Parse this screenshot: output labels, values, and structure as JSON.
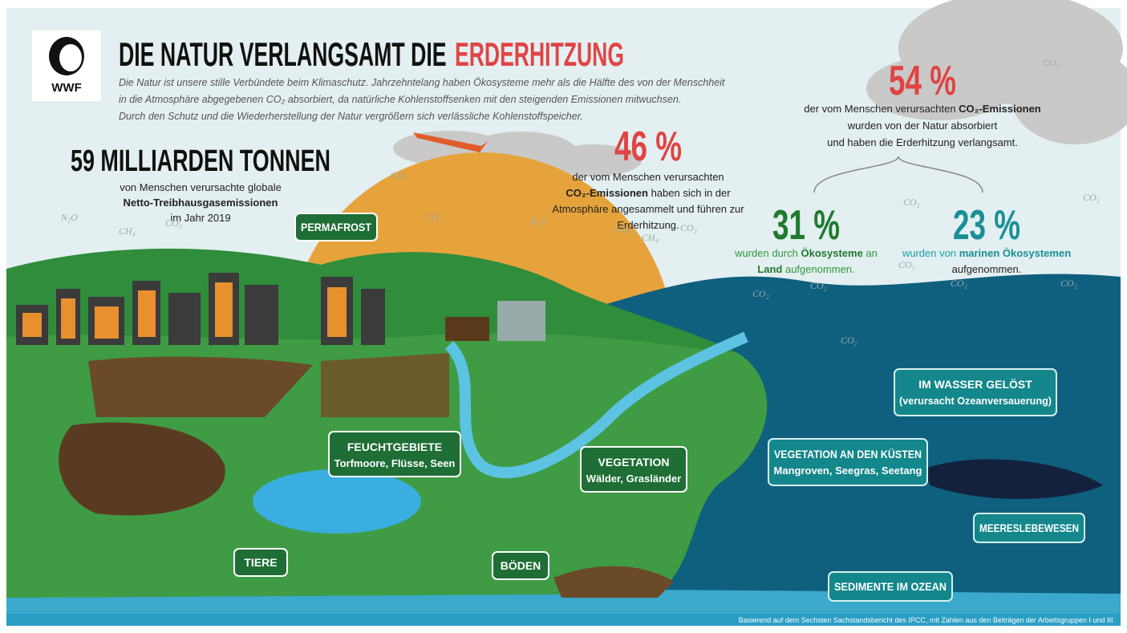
{
  "logo": "WWF",
  "header": {
    "title": "DIE NATUR VERLANGSAMT DIE ",
    "title_highlight": "ERDERHITZUNG",
    "intro": [
      "Die Natur ist unsere stille Verbündete beim Klimaschutz. Jahrzehntelang haben Ökosysteme mehr als die Hälfte des von der Menschheit",
      "in die Atmosphäre abgegebenen CO₂ absorbiert, da natürliche Kohlenstoffsenken mit den steigenden Emissionen mitwuchsen.",
      "Durch den Schutz und die Wiederherstellung der Natur vergrößern sich verlässliche Kohlenstoffspeicher."
    ]
  },
  "stats": [
    {
      "value": "59 MILLIARDEN TONNEN",
      "text": [
        "von Menschen verursachte globale",
        "Netto-Treibhausgasemissionen",
        "im Jahr 2019"
      ]
    },
    {
      "value": "46 %",
      "text": [
        "der vom Menschen verursachten",
        "CO₂-Emissionen",
        " haben sich in der",
        "Atmosphäre angesammelt und führen zur",
        "Erderhitzung."
      ]
    },
    {
      "value": "54 %",
      "text": [
        "der vom Menschen verursachten ",
        "CO₂-Emissionen",
        "wurden von der Natur absorbiert",
        "und haben die Erderhitzung verlangsamt."
      ]
    },
    {
      "value": "31 %",
      "text": [
        "wurden durch ",
        "Ökosysteme",
        " an",
        "Land",
        " aufgenommen."
      ]
    },
    {
      "value": "23 %",
      "text": [
        "wurden von ",
        "marinen Ökosystemen",
        "aufgenommen."
      ]
    }
  ],
  "labels": [
    {
      "title": "PERMAFROST"
    },
    {
      "title": "FEUCHTGEBIETE",
      "subtitle": "Torfmoore, Flüsse, Seen"
    },
    {
      "title": "VEGETATION",
      "subtitle": "Wälder, Grasländer"
    },
    {
      "title": "TIERE"
    },
    {
      "title": "BÖDEN"
    },
    {
      "title": "IM WASSER GELÖST",
      "subtitle": "(verursacht Ozeanversauerung)"
    },
    {
      "title": "VEGETATION AN DEN KÜSTEN",
      "subtitle": "Mangroven, Seegras, Seetang"
    },
    {
      "title": "MEERESLEBEWESEN"
    },
    {
      "title": "SEDIMENTE IM OZEAN"
    }
  ],
  "gases": [
    "CO₂",
    "N₂O",
    "CH₄",
    "CO₂",
    "CO₂",
    "N₂O",
    "CH₄",
    "CO₂",
    "CO₂",
    "CO₂",
    "CO₂",
    "CO₂",
    "CO₂",
    "CO₂",
    "CO₂",
    "CO₂",
    "CO₂",
    "CO₂"
  ],
  "footer": "Basierend auf dem Sechsten Sachstandsbericht des IPCC, mit Zahlen aus den Beiträgen der Arbeitsgruppen I und III."
}
